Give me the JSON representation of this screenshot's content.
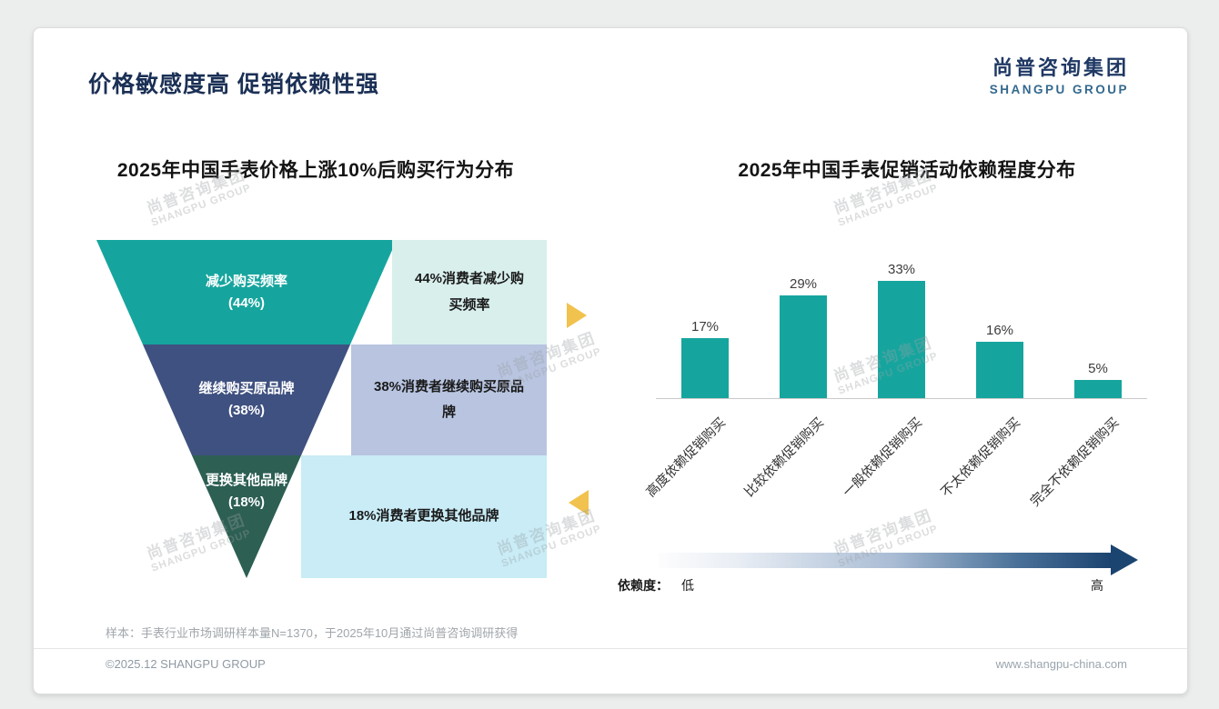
{
  "page": {
    "title": "价格敏感度高 促销依赖性强",
    "logo": {
      "cn": "尚普咨询集团",
      "en": "SHANGPU GROUP"
    },
    "watermark": {
      "cn": "尚普咨询集团",
      "en": "SHANGPU GROUP"
    },
    "footnote": "样本：手表行业市场调研样本量N=1370，于2025年10月通过尚普咨询调研获得",
    "footer": {
      "left": "©2025.12 SHANGPU GROUP",
      "right": "www.shangpu-china.com"
    }
  },
  "colors": {
    "teal": "#16a59e",
    "navy": "#3f5180",
    "dark_green": "#2d5f53",
    "light_teal_box": "#d8efec",
    "light_blue_box": "#b8c4e0",
    "light_cyan_box": "#c9ecf6",
    "gold_arrow": "#f1c24d",
    "title_navy": "#1b3055",
    "gradient_dark": "#1c4470"
  },
  "chart_data": [
    {
      "type": "funnel",
      "title": "2025年中国手表价格上涨10%后购买行为分布",
      "levels": [
        {
          "label": "减少购买频率",
          "value": 44,
          "value_label": "(44%)",
          "desc": "44%消费者减少购买频率"
        },
        {
          "label": "继续购买原品牌",
          "value": 38,
          "value_label": "(38%)",
          "desc": "38%消费者继续购买原品牌"
        },
        {
          "label": "更换其他品牌",
          "value": 18,
          "value_label": "(18%)",
          "desc": "18%消费者更换其他品牌"
        }
      ]
    },
    {
      "type": "bar",
      "title": "2025年中国手表促销活动依赖程度分布",
      "categories": [
        "高度依赖促销购买",
        "比较依赖促销购买",
        "一般依赖促销购买",
        "不太依赖促销购买",
        "完全不依赖促销购买"
      ],
      "values": [
        17,
        29,
        33,
        16,
        5
      ],
      "value_labels": [
        "17%",
        "29%",
        "33%",
        "16%",
        "5%"
      ],
      "ylim": [
        0,
        35
      ],
      "grid": false,
      "legend": "none",
      "axis": {
        "label": "依赖度：",
        "low": "低",
        "high": "高"
      }
    }
  ]
}
